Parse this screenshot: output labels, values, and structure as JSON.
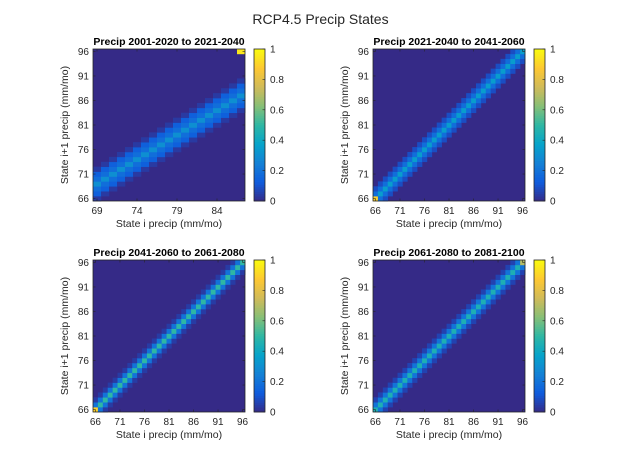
{
  "figure_title": "RCP4.5 Precip States",
  "colorscale": {
    "name": "parula",
    "stops": [
      "#352A87",
      "#0F5CDD",
      "#1481D6",
      "#06A4CA",
      "#2EB7A4",
      "#87BF77",
      "#D1BB59",
      "#FEC832",
      "#F9FB0E"
    ]
  },
  "chart_data": [
    {
      "type": "heatmap",
      "title": "Precip 2001-2020 to 2021-2040",
      "xlabel": "State i precip (mm/mo)",
      "ylabel": "State i+1 precip (mm/mo)",
      "xlim": [
        69,
        88
      ],
      "ylim": [
        66,
        97
      ],
      "xticks": [
        "69",
        "74",
        "79",
        "84"
      ],
      "xtick_values": [
        69,
        74,
        79,
        84
      ],
      "yticks": [
        "66",
        "71",
        "76",
        "81",
        "86",
        "91",
        "96"
      ],
      "ytick_values": [
        66,
        71,
        76,
        81,
        86,
        91,
        96
      ],
      "colorbar_ticks": [
        "0",
        "0.2",
        "0.4",
        "0.6",
        "0.8",
        "1"
      ],
      "colorbar_tick_values": [
        0,
        0.2,
        0.4,
        0.6,
        0.8,
        1
      ],
      "clim": [
        0,
        1
      ],
      "band_peak": 0.3,
      "band_width": 1.6,
      "corner_highlight": {
        "x": 87,
        "y": 96,
        "value": 0.95
      }
    },
    {
      "type": "heatmap",
      "title": "Precip 2021-2040 to 2041-2060",
      "xlabel": "State i precip (mm/mo)",
      "ylabel": "State i+1 precip (mm/mo)",
      "xlim": [
        66,
        97
      ],
      "ylim": [
        66,
        97
      ],
      "xticks": [
        "66",
        "71",
        "76",
        "81",
        "86",
        "91",
        "96"
      ],
      "xtick_values": [
        66,
        71,
        76,
        81,
        86,
        91,
        96
      ],
      "yticks": [
        "66",
        "71",
        "76",
        "81",
        "86",
        "91",
        "96"
      ],
      "ytick_values": [
        66,
        71,
        76,
        81,
        86,
        91,
        96
      ],
      "colorbar_ticks": [
        "0",
        "0.2",
        "0.4",
        "0.6",
        "0.8",
        "1"
      ],
      "colorbar_tick_values": [
        0,
        0.2,
        0.4,
        0.6,
        0.8,
        1
      ],
      "clim": [
        0,
        1
      ],
      "band_peak": 0.35,
      "band_width": 1.2,
      "corner_highlight": {
        "x": 66,
        "y": 66,
        "value": 0.9
      }
    },
    {
      "type": "heatmap",
      "title": "Precip 2041-2060 to 2061-2080",
      "xlabel": "State i precip (mm/mo)",
      "ylabel": "State i+1 precip (mm/mo)",
      "xlim": [
        66,
        97
      ],
      "ylim": [
        66,
        97
      ],
      "xticks": [
        "66",
        "71",
        "76",
        "81",
        "86",
        "91",
        "96"
      ],
      "xtick_values": [
        66,
        71,
        76,
        81,
        86,
        91,
        96
      ],
      "yticks": [
        "66",
        "71",
        "76",
        "81",
        "86",
        "91",
        "96"
      ],
      "ytick_values": [
        66,
        71,
        76,
        81,
        86,
        91,
        96
      ],
      "colorbar_ticks": [
        "0",
        "0.2",
        "0.4",
        "0.6",
        "0.8",
        "1"
      ],
      "colorbar_tick_values": [
        0,
        0.2,
        0.4,
        0.6,
        0.8,
        1
      ],
      "clim": [
        0,
        1
      ],
      "band_peak": 0.5,
      "band_width": 0.9,
      "corner_highlight": {
        "x": 66,
        "y": 66,
        "value": 0.9
      }
    },
    {
      "type": "heatmap",
      "title": "Precip 2061-2080 to 2081-2100",
      "xlabel": "State i precip (mm/mo)",
      "ylabel": "State i+1 precip (mm/mo)",
      "xlim": [
        66,
        97
      ],
      "ylim": [
        66,
        97
      ],
      "xticks": [
        "66",
        "71",
        "76",
        "81",
        "86",
        "91",
        "96"
      ],
      "xtick_values": [
        66,
        71,
        76,
        81,
        86,
        91,
        96
      ],
      "yticks": [
        "66",
        "71",
        "76",
        "81",
        "86",
        "91",
        "96"
      ],
      "ytick_values": [
        66,
        71,
        76,
        81,
        86,
        91,
        96
      ],
      "colorbar_ticks": [
        "0",
        "0.2",
        "0.4",
        "0.6",
        "0.8",
        "1"
      ],
      "colorbar_tick_values": [
        0,
        0.2,
        0.4,
        0.6,
        0.8,
        1
      ],
      "clim": [
        0,
        1
      ],
      "band_peak": 0.45,
      "band_width": 1.0,
      "corner_highlight": {
        "x": 96,
        "y": 96,
        "value": 0.7
      }
    }
  ]
}
